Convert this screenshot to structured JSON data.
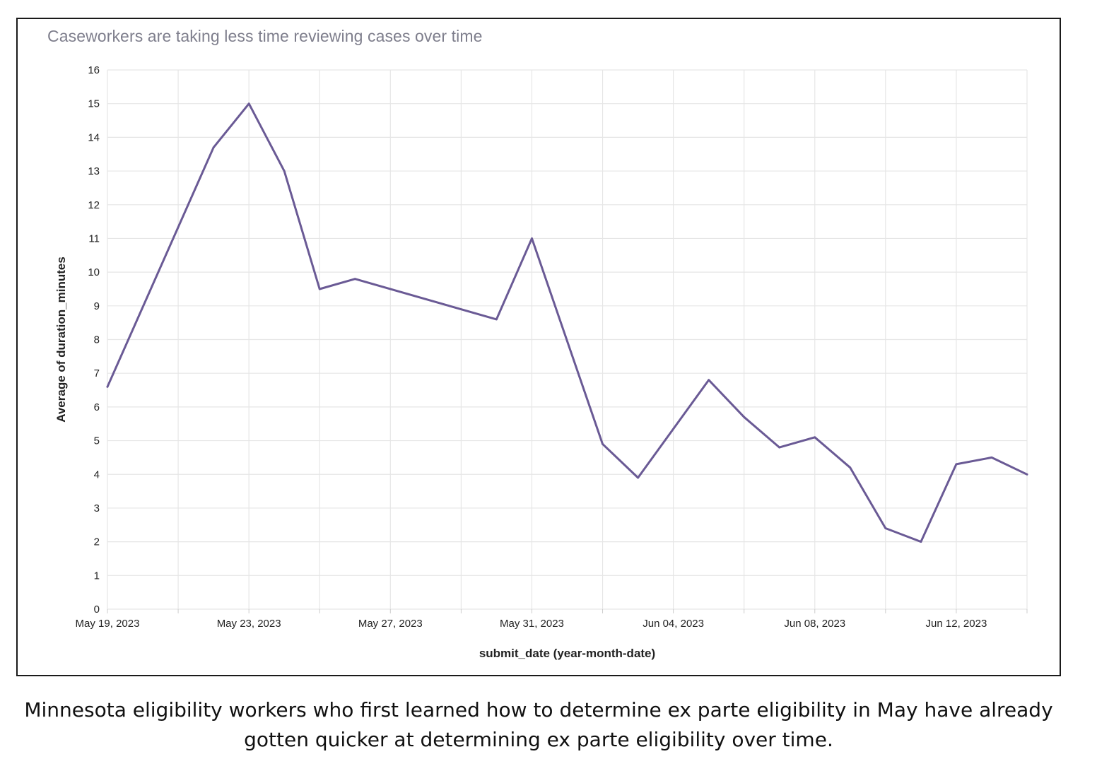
{
  "chart_data": {
    "type": "line",
    "title": "Caseworkers are taking less time reviewing cases over time",
    "xlabel": "submit_date (year-month-date)",
    "ylabel": "Average of duration_minutes",
    "ylim": [
      0,
      16
    ],
    "yticks": [
      "0",
      "1",
      "2",
      "3",
      "4",
      "5",
      "6",
      "7",
      "8",
      "9",
      "10",
      "11",
      "12",
      "13",
      "14",
      "15",
      "16"
    ],
    "xtick_labels": [
      {
        "day_index": 0,
        "label": "May 19, 2023"
      },
      {
        "day_index": 4,
        "label": "May 23, 2023"
      },
      {
        "day_index": 8,
        "label": "May 27, 2023"
      },
      {
        "day_index": 12,
        "label": "May 31, 2023"
      },
      {
        "day_index": 16,
        "label": "Jun 04, 2023"
      },
      {
        "day_index": 20,
        "label": "Jun 08, 2023"
      },
      {
        "day_index": 24,
        "label": "Jun 12, 2023"
      }
    ],
    "day_count": 26,
    "line_color": "#6a5a95",
    "series": [
      {
        "name": "Average of duration_minutes",
        "points": [
          {
            "date": "2023-05-19",
            "day_index": 0,
            "value": 6.6
          },
          {
            "date": "2023-05-22",
            "day_index": 3,
            "value": 13.7
          },
          {
            "date": "2023-05-23",
            "day_index": 4,
            "value": 15.0
          },
          {
            "date": "2023-05-24",
            "day_index": 5,
            "value": 13.0
          },
          {
            "date": "2023-05-25",
            "day_index": 6,
            "value": 9.5
          },
          {
            "date": "2023-05-26",
            "day_index": 7,
            "value": 9.8
          },
          {
            "date": "2023-05-30",
            "day_index": 11,
            "value": 8.6
          },
          {
            "date": "2023-05-31",
            "day_index": 12,
            "value": 11.0
          },
          {
            "date": "2023-06-02",
            "day_index": 14,
            "value": 4.9
          },
          {
            "date": "2023-06-03",
            "day_index": 15,
            "value": 3.9
          },
          {
            "date": "2023-06-05",
            "day_index": 17,
            "value": 6.8
          },
          {
            "date": "2023-06-06",
            "day_index": 18,
            "value": 5.7
          },
          {
            "date": "2023-06-07",
            "day_index": 19,
            "value": 4.8
          },
          {
            "date": "2023-06-08",
            "day_index": 20,
            "value": 5.1
          },
          {
            "date": "2023-06-09",
            "day_index": 21,
            "value": 4.2
          },
          {
            "date": "2023-06-10",
            "day_index": 22,
            "value": 2.4
          },
          {
            "date": "2023-06-11",
            "day_index": 23,
            "value": 2.0
          },
          {
            "date": "2023-06-12",
            "day_index": 24,
            "value": 4.3
          },
          {
            "date": "2023-06-13",
            "day_index": 25,
            "value": 4.5
          },
          {
            "date": "2023-06-14",
            "day_index": 26,
            "value": 4.0
          }
        ]
      }
    ]
  },
  "caption": {
    "line1": "Minnesota eligibility workers who first learned how to determine ex parte eligibility in May have already",
    "line2": "gotten quicker at determining ex parte eligibility over time."
  }
}
